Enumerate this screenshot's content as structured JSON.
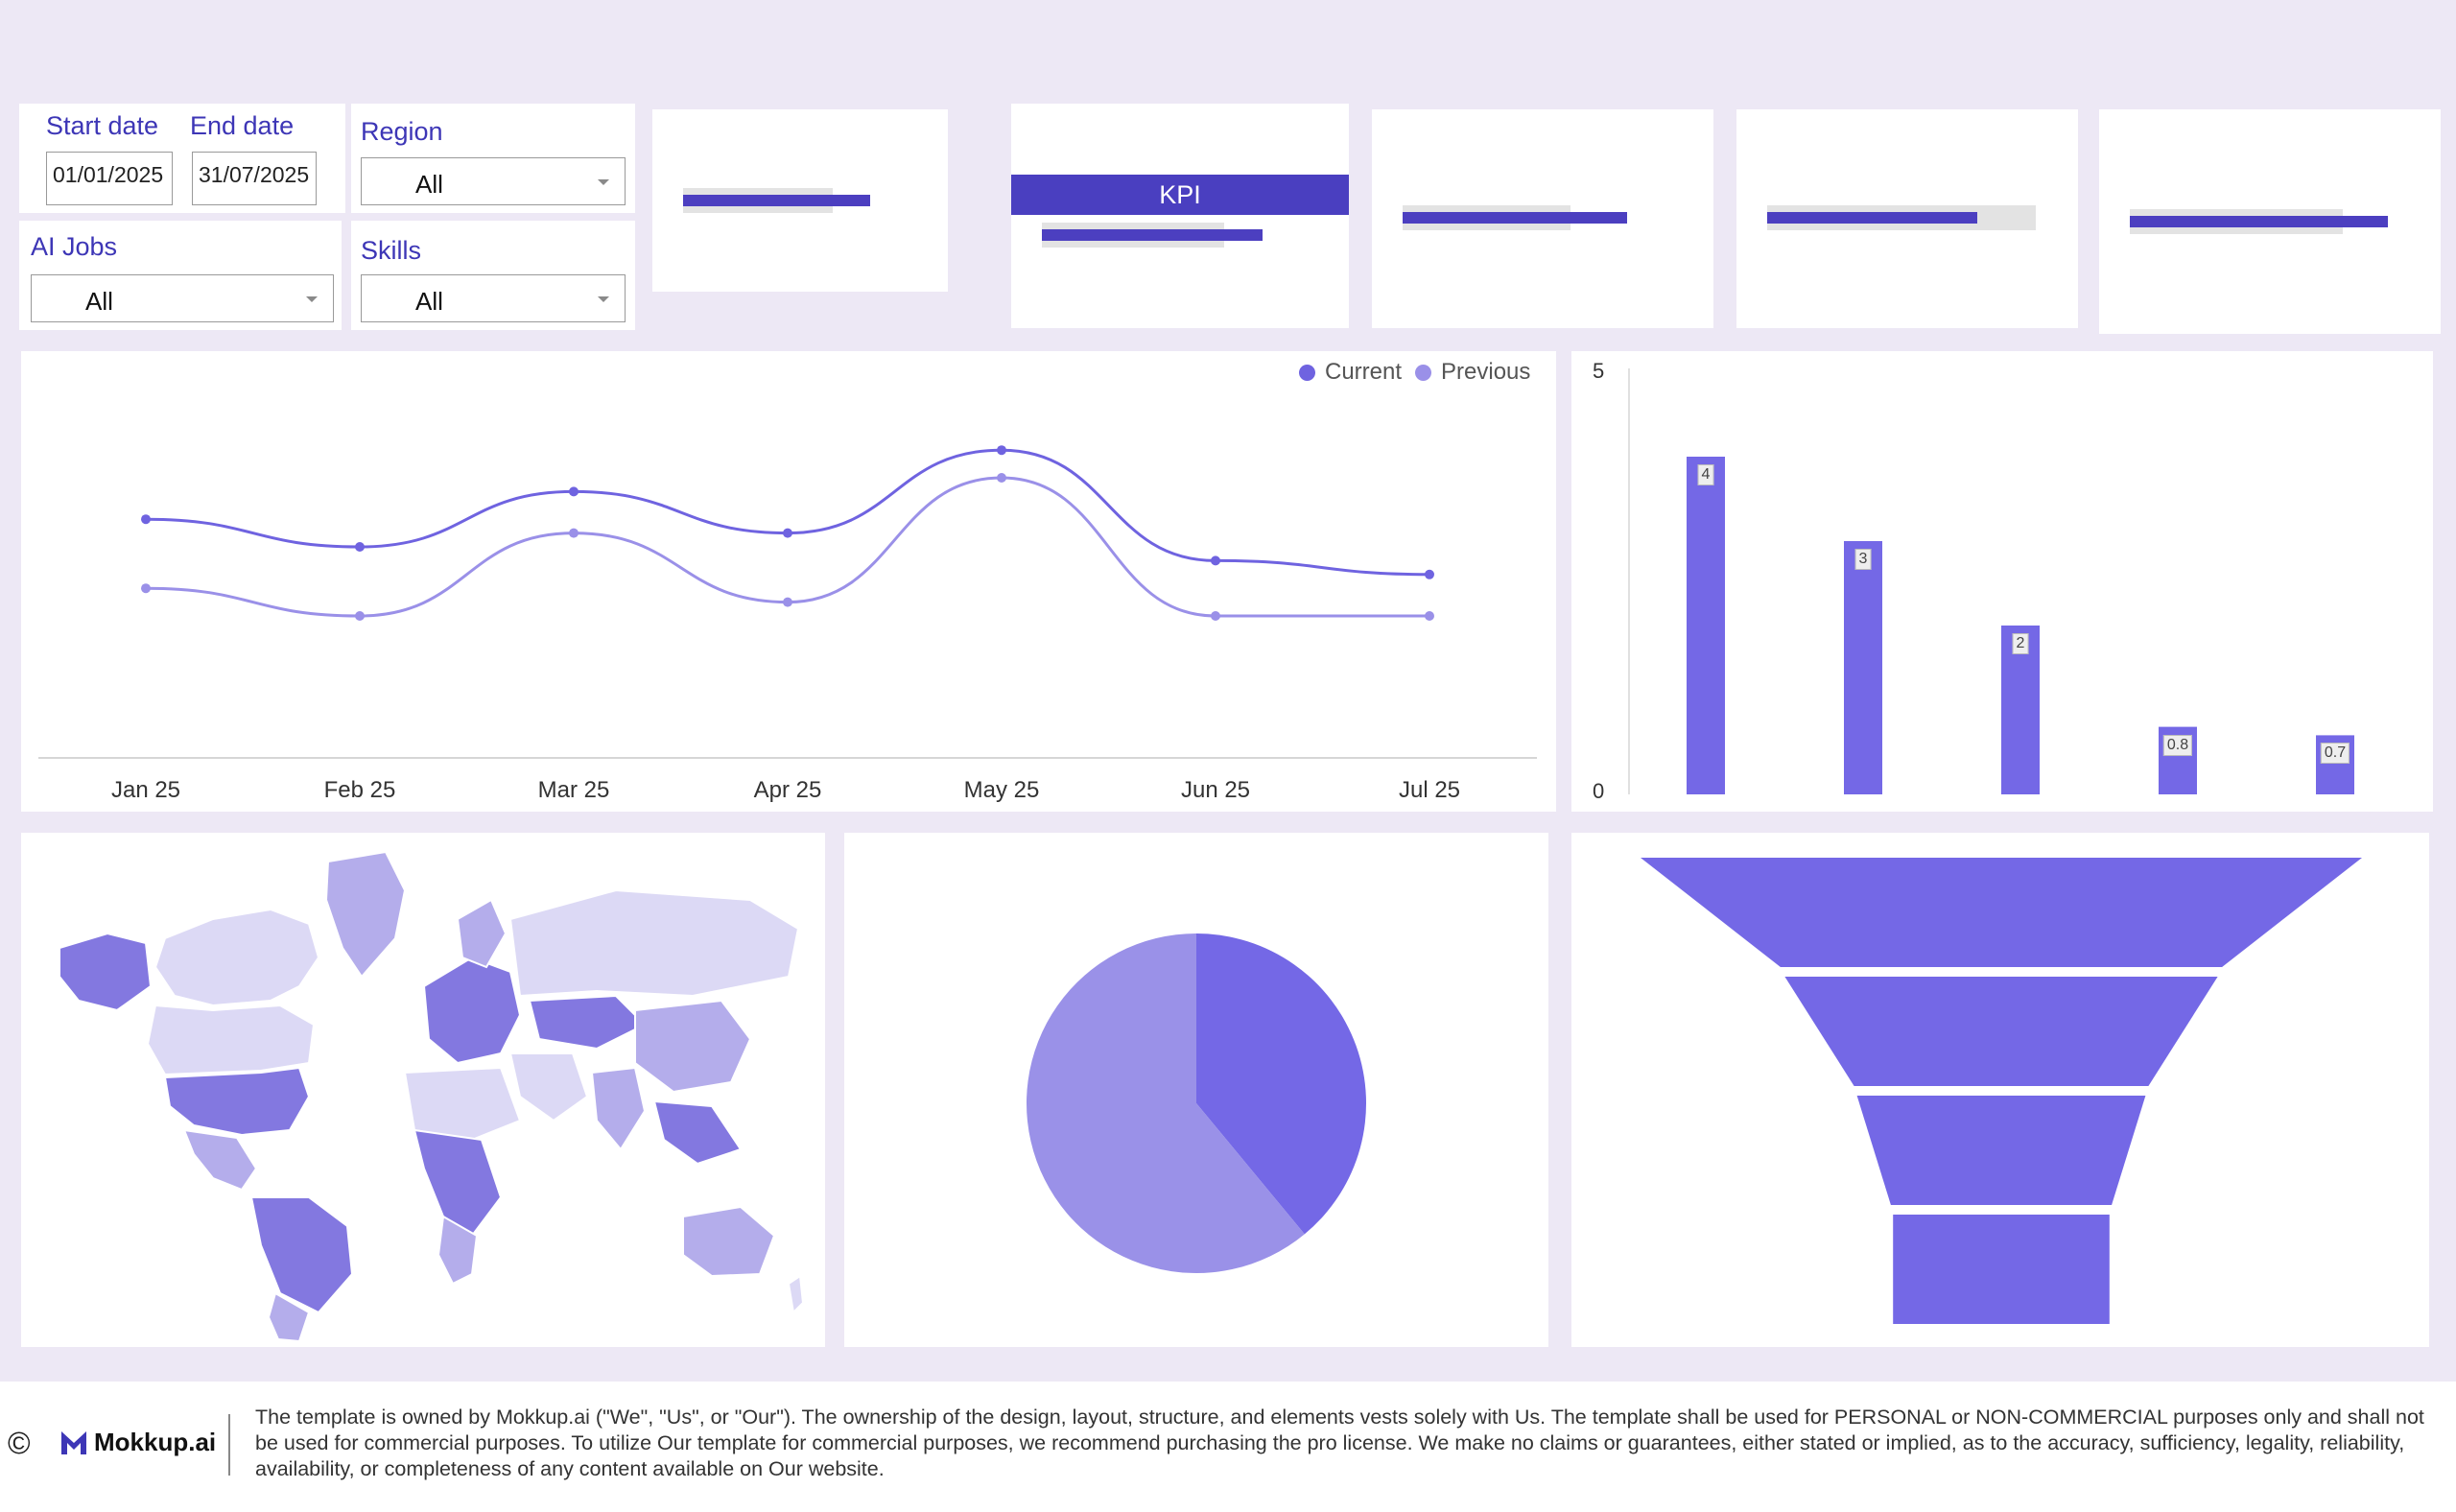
{
  "filters": {
    "start_date_label": "Start date",
    "end_date_label": "End date",
    "start_date_value": "01/01/2025",
    "end_date_value": "31/07/2025",
    "region_label": "Region",
    "region_value": "All",
    "ai_jobs_label": "AI Jobs",
    "ai_jobs_value": "All",
    "skills_label": "Skills",
    "skills_value": "All"
  },
  "kpis": [
    {
      "label": "",
      "fill": 0.8,
      "prev": 0.64
    },
    {
      "label": "KPI",
      "fill": 0.8,
      "prev": 0.66
    },
    {
      "label": "",
      "fill": 0.8,
      "prev": 0.6
    },
    {
      "label": "",
      "fill": 0.75,
      "prev": 0.96
    },
    {
      "label": "",
      "fill": 0.92,
      "prev": 0.76
    }
  ],
  "line_chart": {
    "legend": {
      "current": "Current",
      "previous": "Previous"
    },
    "colors": {
      "current": "#6f63e0",
      "previous": "#9a90e8"
    }
  },
  "chart_data": [
    {
      "type": "line",
      "categories": [
        "Jan 25",
        "Feb 25",
        "Mar 25",
        "Apr 25",
        "May 25",
        "Jun 25",
        "Jul 25"
      ],
      "series": [
        {
          "name": "Current",
          "values": [
            3.4,
            3.0,
            3.8,
            3.2,
            4.4,
            2.8,
            2.6
          ]
        },
        {
          "name": "Previous",
          "values": [
            2.4,
            2.0,
            3.2,
            2.2,
            4.0,
            2.0,
            2.0
          ]
        }
      ],
      "legend": "top-right",
      "grid": false
    },
    {
      "type": "bar",
      "categories": [
        "",
        "",
        "",
        "",
        ""
      ],
      "values": [
        4,
        3,
        2,
        0.8,
        0.7
      ],
      "data_labels": [
        "4",
        "3",
        "2",
        "0.8",
        "0.7"
      ],
      "ylim": [
        0,
        5
      ],
      "yticks": [
        "0",
        "5"
      ],
      "color": "#7468e6"
    },
    {
      "type": "pie",
      "values": [
        0.39,
        0.61
      ],
      "colors": [
        "#7468e6",
        "#9a91e8"
      ]
    },
    {
      "type": "funnel",
      "values": [
        100,
        60,
        40,
        30
      ],
      "color": "#7468e6"
    }
  ],
  "map": {
    "title": "",
    "fill_dark": "#8378e0",
    "fill_mid": "#b4adeb",
    "fill_light": "#dcd9f5"
  },
  "footer": {
    "copyright_symbol": "©",
    "logo_text": "Mokkup.ai",
    "disclaimer": "The template is owned by Mokkup.ai (\"We\", \"Us\", or \"Our\"). The ownership of the design, layout, structure, and elements vests solely with Us. The template shall be used for PERSONAL or NON-COMMERCIAL purposes only and shall not be used for commercial purposes. To utilize Our template for commercial purposes, we recommend purchasing the pro license. We make no claims or guarantees, either stated or implied, as to the accuracy, sufficiency, legality, reliability, availability, or completeness of any content available on Our website."
  }
}
